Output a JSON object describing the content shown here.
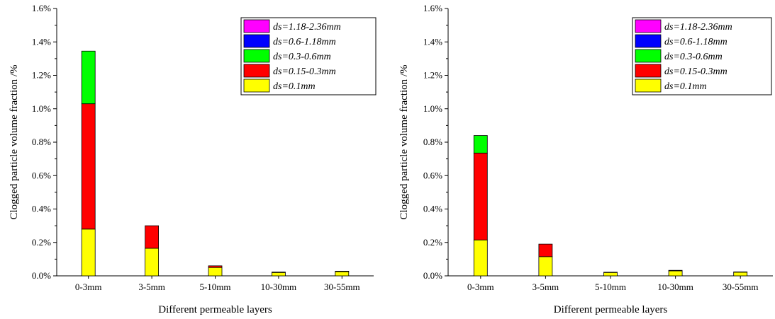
{
  "chart_data": [
    {
      "type": "bar",
      "stacked": true,
      "xlabel": "Different permeable layers",
      "ylabel": "Clogged particle volume fraction /%",
      "ylim": [
        0,
        1.6
      ],
      "yticks": [
        "0.0%",
        "0.2%",
        "0.4%",
        "0.6%",
        "0.8%",
        "1.0%",
        "1.2%",
        "1.4%",
        "1.6%"
      ],
      "categories": [
        "0-3mm",
        "3-5mm",
        "5-10mm",
        "10-30mm",
        "30-55mm"
      ],
      "legend_position": "top-right",
      "grid": false,
      "series": [
        {
          "name": "ds=0.1mm",
          "color": "#ffff00",
          "values": [
            0.28,
            0.165,
            0.05,
            0.02,
            0.025
          ]
        },
        {
          "name": "ds=0.15-0.3mm",
          "color": "#ff0000",
          "values": [
            0.75,
            0.135,
            0.01,
            0.003,
            0.003
          ]
        },
        {
          "name": "ds=0.3-0.6mm",
          "color": "#00ff00",
          "values": [
            0.315,
            0,
            0,
            0,
            0
          ]
        },
        {
          "name": "ds=0.6-1.18mm",
          "color": "#0000ff",
          "values": [
            0,
            0,
            0,
            0,
            0
          ]
        },
        {
          "name": "ds=1.18-2.36mm",
          "color": "#ff00ff",
          "values": [
            0,
            0,
            0,
            0,
            0
          ]
        }
      ]
    },
    {
      "type": "bar",
      "stacked": true,
      "xlabel": "Different permeable layers",
      "ylabel": "Clogged particle volume fraction /%",
      "ylim": [
        0,
        1.6
      ],
      "yticks": [
        "0.0%",
        "0.2%",
        "0.4%",
        "0.6%",
        "0.8%",
        "1.0%",
        "1.2%",
        "1.4%",
        "1.6%"
      ],
      "categories": [
        "0-3mm",
        "3-5mm",
        "5-10mm",
        "10-30mm",
        "30-55mm"
      ],
      "legend_position": "top-right",
      "grid": false,
      "series": [
        {
          "name": "ds=0.1mm",
          "color": "#ffff00",
          "values": [
            0.215,
            0.115,
            0.02,
            0.03,
            0.022
          ]
        },
        {
          "name": "ds=0.15-0.3mm",
          "color": "#ff0000",
          "values": [
            0.52,
            0.075,
            0.002,
            0.003,
            0.002
          ]
        },
        {
          "name": "ds=0.3-0.6mm",
          "color": "#00ff00",
          "values": [
            0.105,
            0,
            0,
            0,
            0
          ]
        },
        {
          "name": "ds=0.6-1.18mm",
          "color": "#0000ff",
          "values": [
            0,
            0,
            0,
            0,
            0
          ]
        },
        {
          "name": "ds=1.18-2.36mm",
          "color": "#ff00ff",
          "values": [
            0,
            0,
            0,
            0,
            0
          ]
        }
      ]
    }
  ]
}
